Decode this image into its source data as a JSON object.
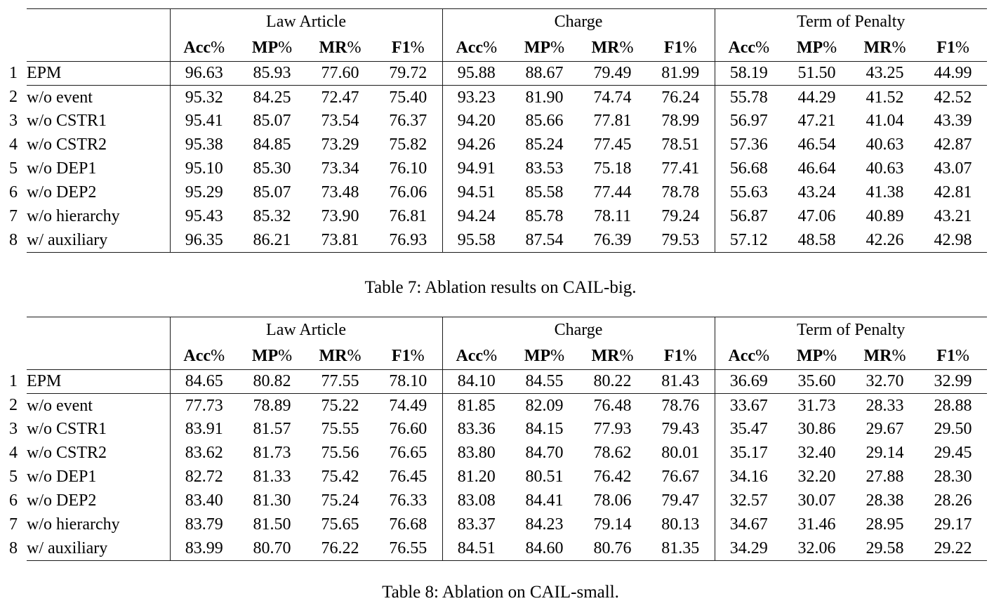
{
  "page": {
    "background": "#ffffff",
    "text_color": "#000000",
    "rule_color": "#1b1b1b"
  },
  "tables": [
    {
      "caption": "Table 7: Ablation results on CAIL-big.",
      "column_groups": [
        "Law Article",
        "Charge",
        "Term of Penalty"
      ],
      "metric_headers": [
        "Acc%",
        "MP%",
        "MR%",
        "F1%"
      ],
      "rows": [
        {
          "num": "1",
          "label": "EPM",
          "values": [
            [
              "96.63",
              "85.93",
              "77.60",
              "79.72"
            ],
            [
              "95.88",
              "88.67",
              "79.49",
              "81.99"
            ],
            [
              "58.19",
              "51.50",
              "43.25",
              "44.99"
            ]
          ]
        },
        {
          "num": "2",
          "label": "w/o event",
          "values": [
            [
              "95.32",
              "84.25",
              "72.47",
              "75.40"
            ],
            [
              "93.23",
              "81.90",
              "74.74",
              "76.24"
            ],
            [
              "55.78",
              "44.29",
              "41.52",
              "42.52"
            ]
          ]
        },
        {
          "num": "3",
          "label": "w/o CSTR1",
          "values": [
            [
              "95.41",
              "85.07",
              "73.54",
              "76.37"
            ],
            [
              "94.20",
              "85.66",
              "77.81",
              "78.99"
            ],
            [
              "56.97",
              "47.21",
              "41.04",
              "43.39"
            ]
          ]
        },
        {
          "num": "4",
          "label": "w/o CSTR2",
          "values": [
            [
              "95.38",
              "84.85",
              "73.29",
              "75.82"
            ],
            [
              "94.26",
              "85.24",
              "77.45",
              "78.51"
            ],
            [
              "57.36",
              "46.54",
              "40.63",
              "42.87"
            ]
          ]
        },
        {
          "num": "5",
          "label": "w/o DEP1",
          "values": [
            [
              "95.10",
              "85.30",
              "73.34",
              "76.10"
            ],
            [
              "94.91",
              "83.53",
              "75.18",
              "77.41"
            ],
            [
              "56.68",
              "46.64",
              "40.63",
              "43.07"
            ]
          ]
        },
        {
          "num": "6",
          "label": "w/o DEP2",
          "values": [
            [
              "95.29",
              "85.07",
              "73.48",
              "76.06"
            ],
            [
              "94.51",
              "85.58",
              "77.44",
              "78.78"
            ],
            [
              "55.63",
              "43.24",
              "41.38",
              "42.81"
            ]
          ]
        },
        {
          "num": "7",
          "label": "w/o hierarchy",
          "values": [
            [
              "95.43",
              "85.32",
              "73.90",
              "76.81"
            ],
            [
              "94.24",
              "85.78",
              "78.11",
              "79.24"
            ],
            [
              "56.87",
              "47.06",
              "40.89",
              "43.21"
            ]
          ]
        },
        {
          "num": "8",
          "label": "w/ auxiliary",
          "values": [
            [
              "96.35",
              "86.21",
              "73.81",
              "76.93"
            ],
            [
              "95.58",
              "87.54",
              "76.39",
              "79.53"
            ],
            [
              "57.12",
              "48.58",
              "42.26",
              "42.98"
            ]
          ]
        }
      ]
    },
    {
      "caption": "Table 8: Ablation on CAIL-small.",
      "column_groups": [
        "Law Article",
        "Charge",
        "Term of Penalty"
      ],
      "metric_headers": [
        "Acc%",
        "MP%",
        "MR%",
        "F1%"
      ],
      "rows": [
        {
          "num": "1",
          "label": "EPM",
          "values": [
            [
              "84.65",
              "80.82",
              "77.55",
              "78.10"
            ],
            [
              "84.10",
              "84.55",
              "80.22",
              "81.43"
            ],
            [
              "36.69",
              "35.60",
              "32.70",
              "32.99"
            ]
          ]
        },
        {
          "num": "2",
          "label": "w/o event",
          "values": [
            [
              "77.73",
              "78.89",
              "75.22",
              "74.49"
            ],
            [
              "81.85",
              "82.09",
              "76.48",
              "78.76"
            ],
            [
              "33.67",
              "31.73",
              "28.33",
              "28.88"
            ]
          ]
        },
        {
          "num": "3",
          "label": "w/o CSTR1",
          "values": [
            [
              "83.91",
              "81.57",
              "75.55",
              "76.60"
            ],
            [
              "83.36",
              "84.15",
              "77.93",
              "79.43"
            ],
            [
              "35.47",
              "30.86",
              "29.67",
              "29.50"
            ]
          ]
        },
        {
          "num": "4",
          "label": "w/o CSTR2",
          "values": [
            [
              "83.62",
              "81.73",
              "75.56",
              "76.65"
            ],
            [
              "83.80",
              "84.70",
              "78.62",
              "80.01"
            ],
            [
              "35.17",
              "32.40",
              "29.14",
              "29.45"
            ]
          ]
        },
        {
          "num": "5",
          "label": "w/o DEP1",
          "values": [
            [
              "82.72",
              "81.33",
              "75.42",
              "76.45"
            ],
            [
              "81.20",
              "80.51",
              "76.42",
              "76.67"
            ],
            [
              "34.16",
              "32.20",
              "27.88",
              "28.30"
            ]
          ]
        },
        {
          "num": "6",
          "label": "w/o DEP2",
          "values": [
            [
              "83.40",
              "81.30",
              "75.24",
              "76.33"
            ],
            [
              "83.08",
              "84.41",
              "78.06",
              "79.47"
            ],
            [
              "32.57",
              "30.07",
              "28.38",
              "28.26"
            ]
          ]
        },
        {
          "num": "7",
          "label": "w/o hierarchy",
          "values": [
            [
              "83.79",
              "81.50",
              "75.65",
              "76.68"
            ],
            [
              "83.37",
              "84.23",
              "79.14",
              "80.13"
            ],
            [
              "34.67",
              "31.46",
              "28.95",
              "29.17"
            ]
          ]
        },
        {
          "num": "8",
          "label": "w/ auxiliary",
          "values": [
            [
              "83.99",
              "80.70",
              "76.22",
              "76.55"
            ],
            [
              "84.51",
              "84.60",
              "80.76",
              "81.35"
            ],
            [
              "34.29",
              "32.06",
              "29.58",
              "29.22"
            ]
          ]
        }
      ]
    }
  ]
}
